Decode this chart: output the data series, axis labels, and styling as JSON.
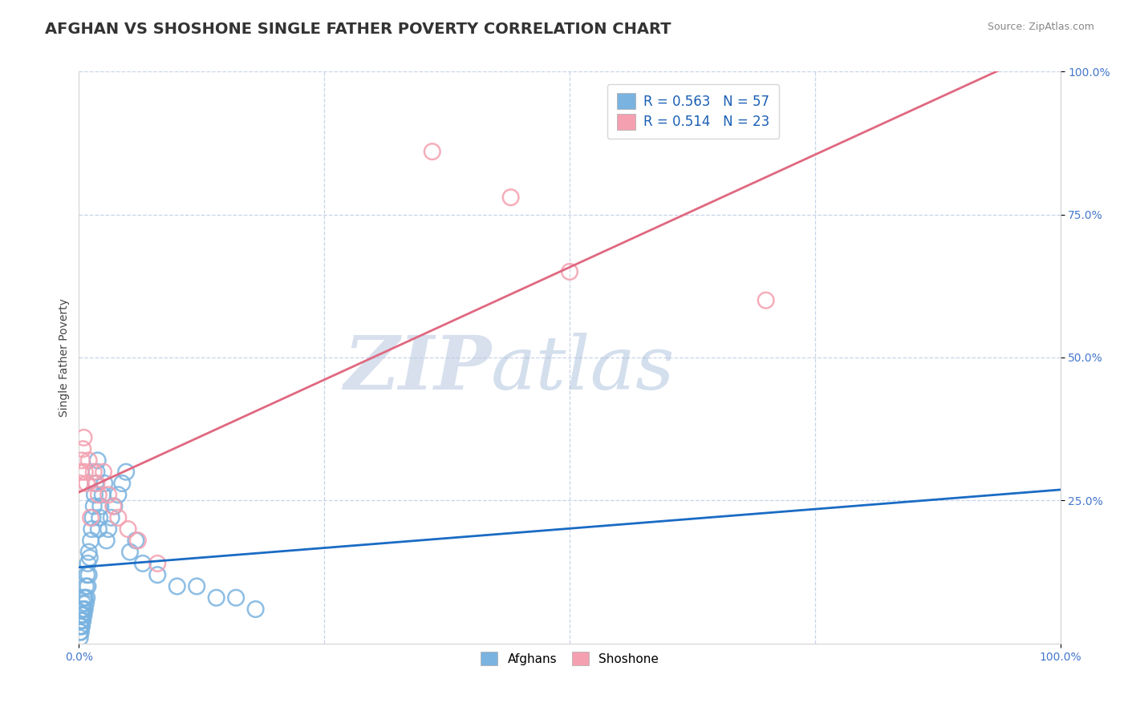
{
  "title": "AFGHAN VS SHOSHONE SINGLE FATHER POVERTY CORRELATION CHART",
  "source": "Source: ZipAtlas.com",
  "ylabel": "Single Father Poverty",
  "xlim": [
    0,
    1.0
  ],
  "ylim": [
    0,
    1.0
  ],
  "afghan_color": "#7ab3e0",
  "shoshone_color": "#f4a0b0",
  "afghan_line_color": "#1a6bc4",
  "shoshone_line_color": "#e06880",
  "r_afghan": 0.563,
  "n_afghan": 57,
  "r_shoshone": 0.514,
  "n_shoshone": 23,
  "watermark_zip": "ZIP",
  "watermark_atlas": "atlas",
  "background_color": "#ffffff",
  "grid_color": "#c8d4e8",
  "tick_color": "#4477cc",
  "title_color": "#333333",
  "ylabel_color": "#444444",
  "afghan_points_x": [
    0.001,
    0.001,
    0.001,
    0.002,
    0.002,
    0.002,
    0.002,
    0.003,
    0.003,
    0.003,
    0.003,
    0.004,
    0.004,
    0.004,
    0.005,
    0.005,
    0.005,
    0.006,
    0.006,
    0.007,
    0.007,
    0.008,
    0.008,
    0.009,
    0.009,
    0.01,
    0.01,
    0.011,
    0.012,
    0.013,
    0.014,
    0.015,
    0.016,
    0.017,
    0.018,
    0.019,
    0.02,
    0.021,
    0.022,
    0.024,
    0.026,
    0.028,
    0.03,
    0.033,
    0.036,
    0.04,
    0.044,
    0.048,
    0.052,
    0.058,
    0.065,
    0.08,
    0.1,
    0.12,
    0.14,
    0.16,
    0.18
  ],
  "afghan_points_y": [
    0.01,
    0.02,
    0.03,
    0.02,
    0.03,
    0.04,
    0.05,
    0.03,
    0.04,
    0.05,
    0.06,
    0.04,
    0.05,
    0.07,
    0.05,
    0.06,
    0.08,
    0.06,
    0.08,
    0.07,
    0.1,
    0.08,
    0.12,
    0.1,
    0.14,
    0.12,
    0.16,
    0.15,
    0.18,
    0.2,
    0.22,
    0.24,
    0.26,
    0.28,
    0.3,
    0.32,
    0.2,
    0.22,
    0.24,
    0.26,
    0.28,
    0.18,
    0.2,
    0.22,
    0.24,
    0.26,
    0.28,
    0.3,
    0.16,
    0.18,
    0.14,
    0.12,
    0.1,
    0.1,
    0.08,
    0.08,
    0.06
  ],
  "shoshone_points_x": [
    0.001,
    0.002,
    0.003,
    0.004,
    0.005,
    0.006,
    0.008,
    0.01,
    0.012,
    0.015,
    0.018,
    0.02,
    0.025,
    0.03,
    0.035,
    0.04,
    0.05,
    0.06,
    0.08,
    0.36,
    0.44,
    0.5,
    0.7
  ],
  "shoshone_points_y": [
    0.28,
    0.3,
    0.32,
    0.34,
    0.36,
    0.3,
    0.28,
    0.32,
    0.22,
    0.3,
    0.28,
    0.26,
    0.3,
    0.26,
    0.24,
    0.22,
    0.2,
    0.18,
    0.14,
    0.86,
    0.78,
    0.65,
    0.6
  ],
  "title_fontsize": 14,
  "axis_label_fontsize": 10,
  "tick_fontsize": 10,
  "legend_fontsize": 12
}
